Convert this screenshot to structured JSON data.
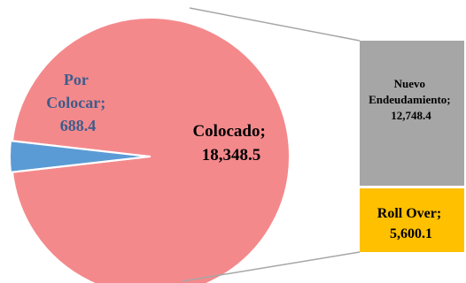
{
  "chart_data": {
    "type": "pie",
    "subtype": "pie-of-bar",
    "slices": [
      {
        "name": "Colocado",
        "value": 18348.5,
        "value_label": "18,348.5",
        "color": "#F4898C",
        "label_color": "#000000"
      },
      {
        "name": "Por Colocar",
        "value": 688.4,
        "value_label": "688.4",
        "color": "#5B9BD5",
        "label_color": "#3E5C8A"
      }
    ],
    "breakdown": {
      "of": "Colocado",
      "type": "stacked-bar",
      "segments": [
        {
          "name": "Nuevo Endeudamiento",
          "value": 12748.4,
          "value_label": "12,748.4",
          "color": "#A6A6A6"
        },
        {
          "name": "Roll Over",
          "value": 5600.1,
          "value_label": "5,600.1",
          "color": "#FFC000"
        }
      ]
    },
    "connector_color": "#A6A6A6",
    "title": "",
    "legend": "none"
  }
}
